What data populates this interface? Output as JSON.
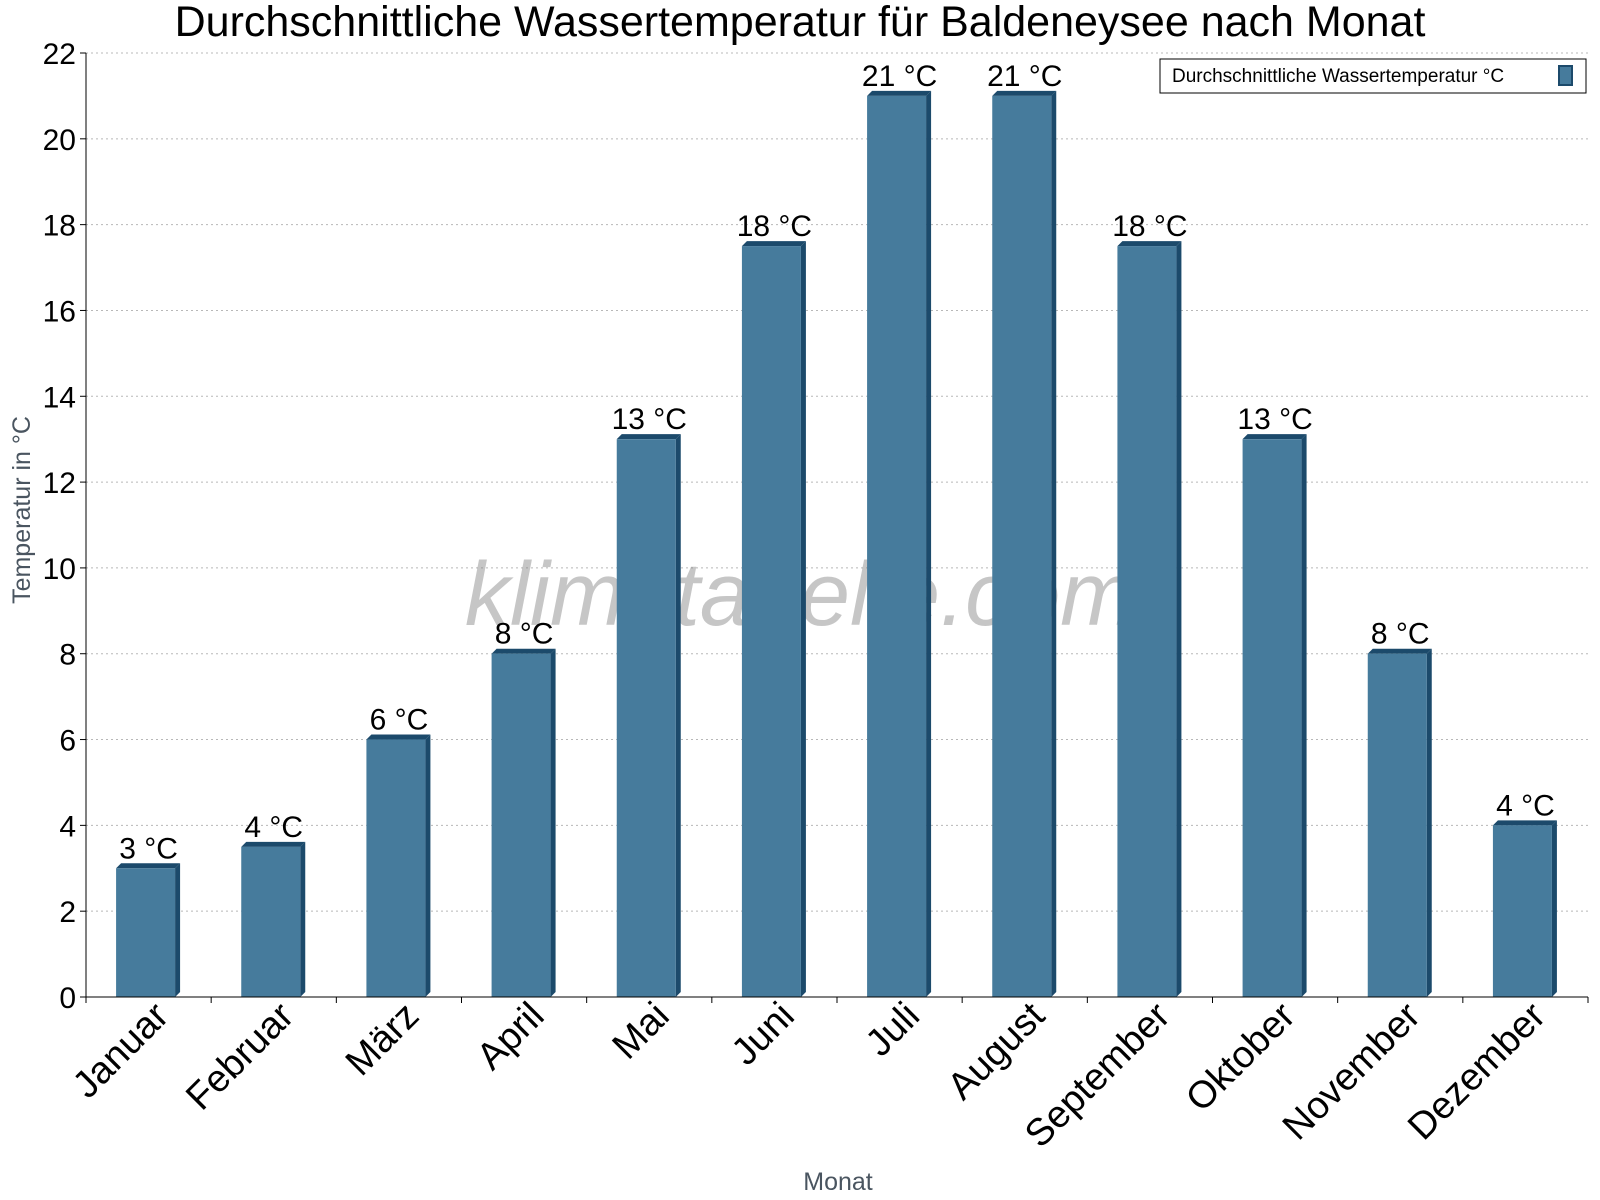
{
  "chart_data": {
    "type": "bar",
    "title": "Durchschnittliche Wassertemperatur für Baldeneysee nach Monat",
    "xlabel": "Monat",
    "ylabel": "Temperatur in °C",
    "categories": [
      "Januar",
      "Februar",
      "März",
      "April",
      "Mai",
      "Juni",
      "Juli",
      "August",
      "September",
      "Oktober",
      "November",
      "Dezember"
    ],
    "series": [
      {
        "name": "Durchschnittliche Wassertemperatur °C",
        "values": [
          3,
          3.5,
          6,
          8,
          13,
          17.5,
          21,
          21,
          17.5,
          13,
          8,
          4
        ],
        "data_labels": [
          "3 °C",
          "4 °C",
          "6 °C",
          "8 °C",
          "13 °C",
          "18 °C",
          "21 °C",
          "21 °C",
          "18 °C",
          "13 °C",
          "8 °C",
          "4 °C"
        ],
        "color": "#467b9c",
        "edge_color": "#1c4a6b"
      }
    ],
    "ylim": [
      0,
      22
    ],
    "yticks": [
      0,
      2,
      4,
      6,
      8,
      10,
      12,
      14,
      16,
      18,
      20,
      22
    ],
    "grid": true,
    "legend_position": "top-right",
    "watermark": "klimatabelle.com"
  }
}
